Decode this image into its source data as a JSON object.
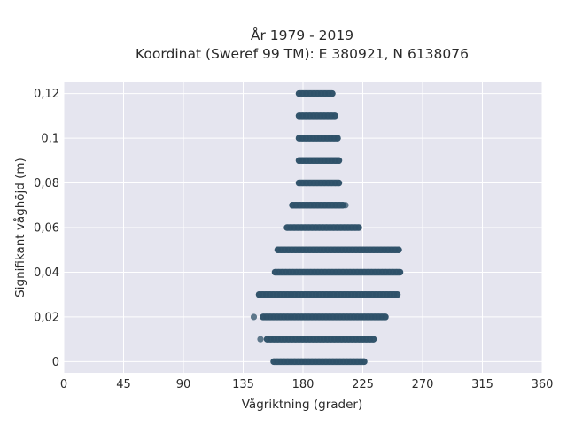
{
  "chart_data": {
    "type": "scatter",
    "title_lines": [
      "År 1979 - 2019",
      "Koordinat (Sweref 99 TM): E 380921, N 6138076"
    ],
    "xlabel": "Vågriktning (grader)",
    "ylabel": "Signifikant våghöjd (m)",
    "xlim": [
      0,
      360
    ],
    "ylim": [
      -0.005,
      0.125
    ],
    "xticks": [
      0,
      45,
      90,
      135,
      180,
      225,
      270,
      315,
      360
    ],
    "xtick_labels": [
      "0",
      "45",
      "90",
      "135",
      "180",
      "225",
      "270",
      "315",
      "360"
    ],
    "yticks": [
      0,
      0.02,
      0.04,
      0.06,
      0.08,
      0.1,
      0.12
    ],
    "ytick_labels": [
      "0",
      "0,02",
      "0,04",
      "0,06",
      "0,08",
      "0,1",
      "0,12"
    ],
    "grid": true,
    "background_color": "#e5e5ef",
    "marker_color": "#2d5068",
    "series": [
      {
        "values": [
          {
            "y": 0.0,
            "x_from": 158,
            "x_to": 226
          },
          {
            "y": 0.01,
            "x_from": 153,
            "x_to": 233
          },
          {
            "y": 0.02,
            "x_from": 150,
            "x_to": 242
          },
          {
            "y": 0.03,
            "x_from": 147,
            "x_to": 251
          },
          {
            "y": 0.04,
            "x_from": 159,
            "x_to": 253
          },
          {
            "y": 0.05,
            "x_from": 161,
            "x_to": 252
          },
          {
            "y": 0.06,
            "x_from": 168,
            "x_to": 222
          },
          {
            "y": 0.07,
            "x_from": 172,
            "x_to": 210
          },
          {
            "y": 0.08,
            "x_from": 177,
            "x_to": 207
          },
          {
            "y": 0.09,
            "x_from": 177,
            "x_to": 207
          },
          {
            "y": 0.1,
            "x_from": 177,
            "x_to": 206
          },
          {
            "y": 0.11,
            "x_from": 177,
            "x_to": 204
          },
          {
            "y": 0.12,
            "x_from": 177,
            "x_to": 202
          }
        ]
      },
      {
        "points": [
          {
            "x": 143,
            "y": 0.02
          },
          {
            "x": 148,
            "y": 0.01
          },
          {
            "x": 212,
            "y": 0.07
          }
        ]
      }
    ]
  }
}
